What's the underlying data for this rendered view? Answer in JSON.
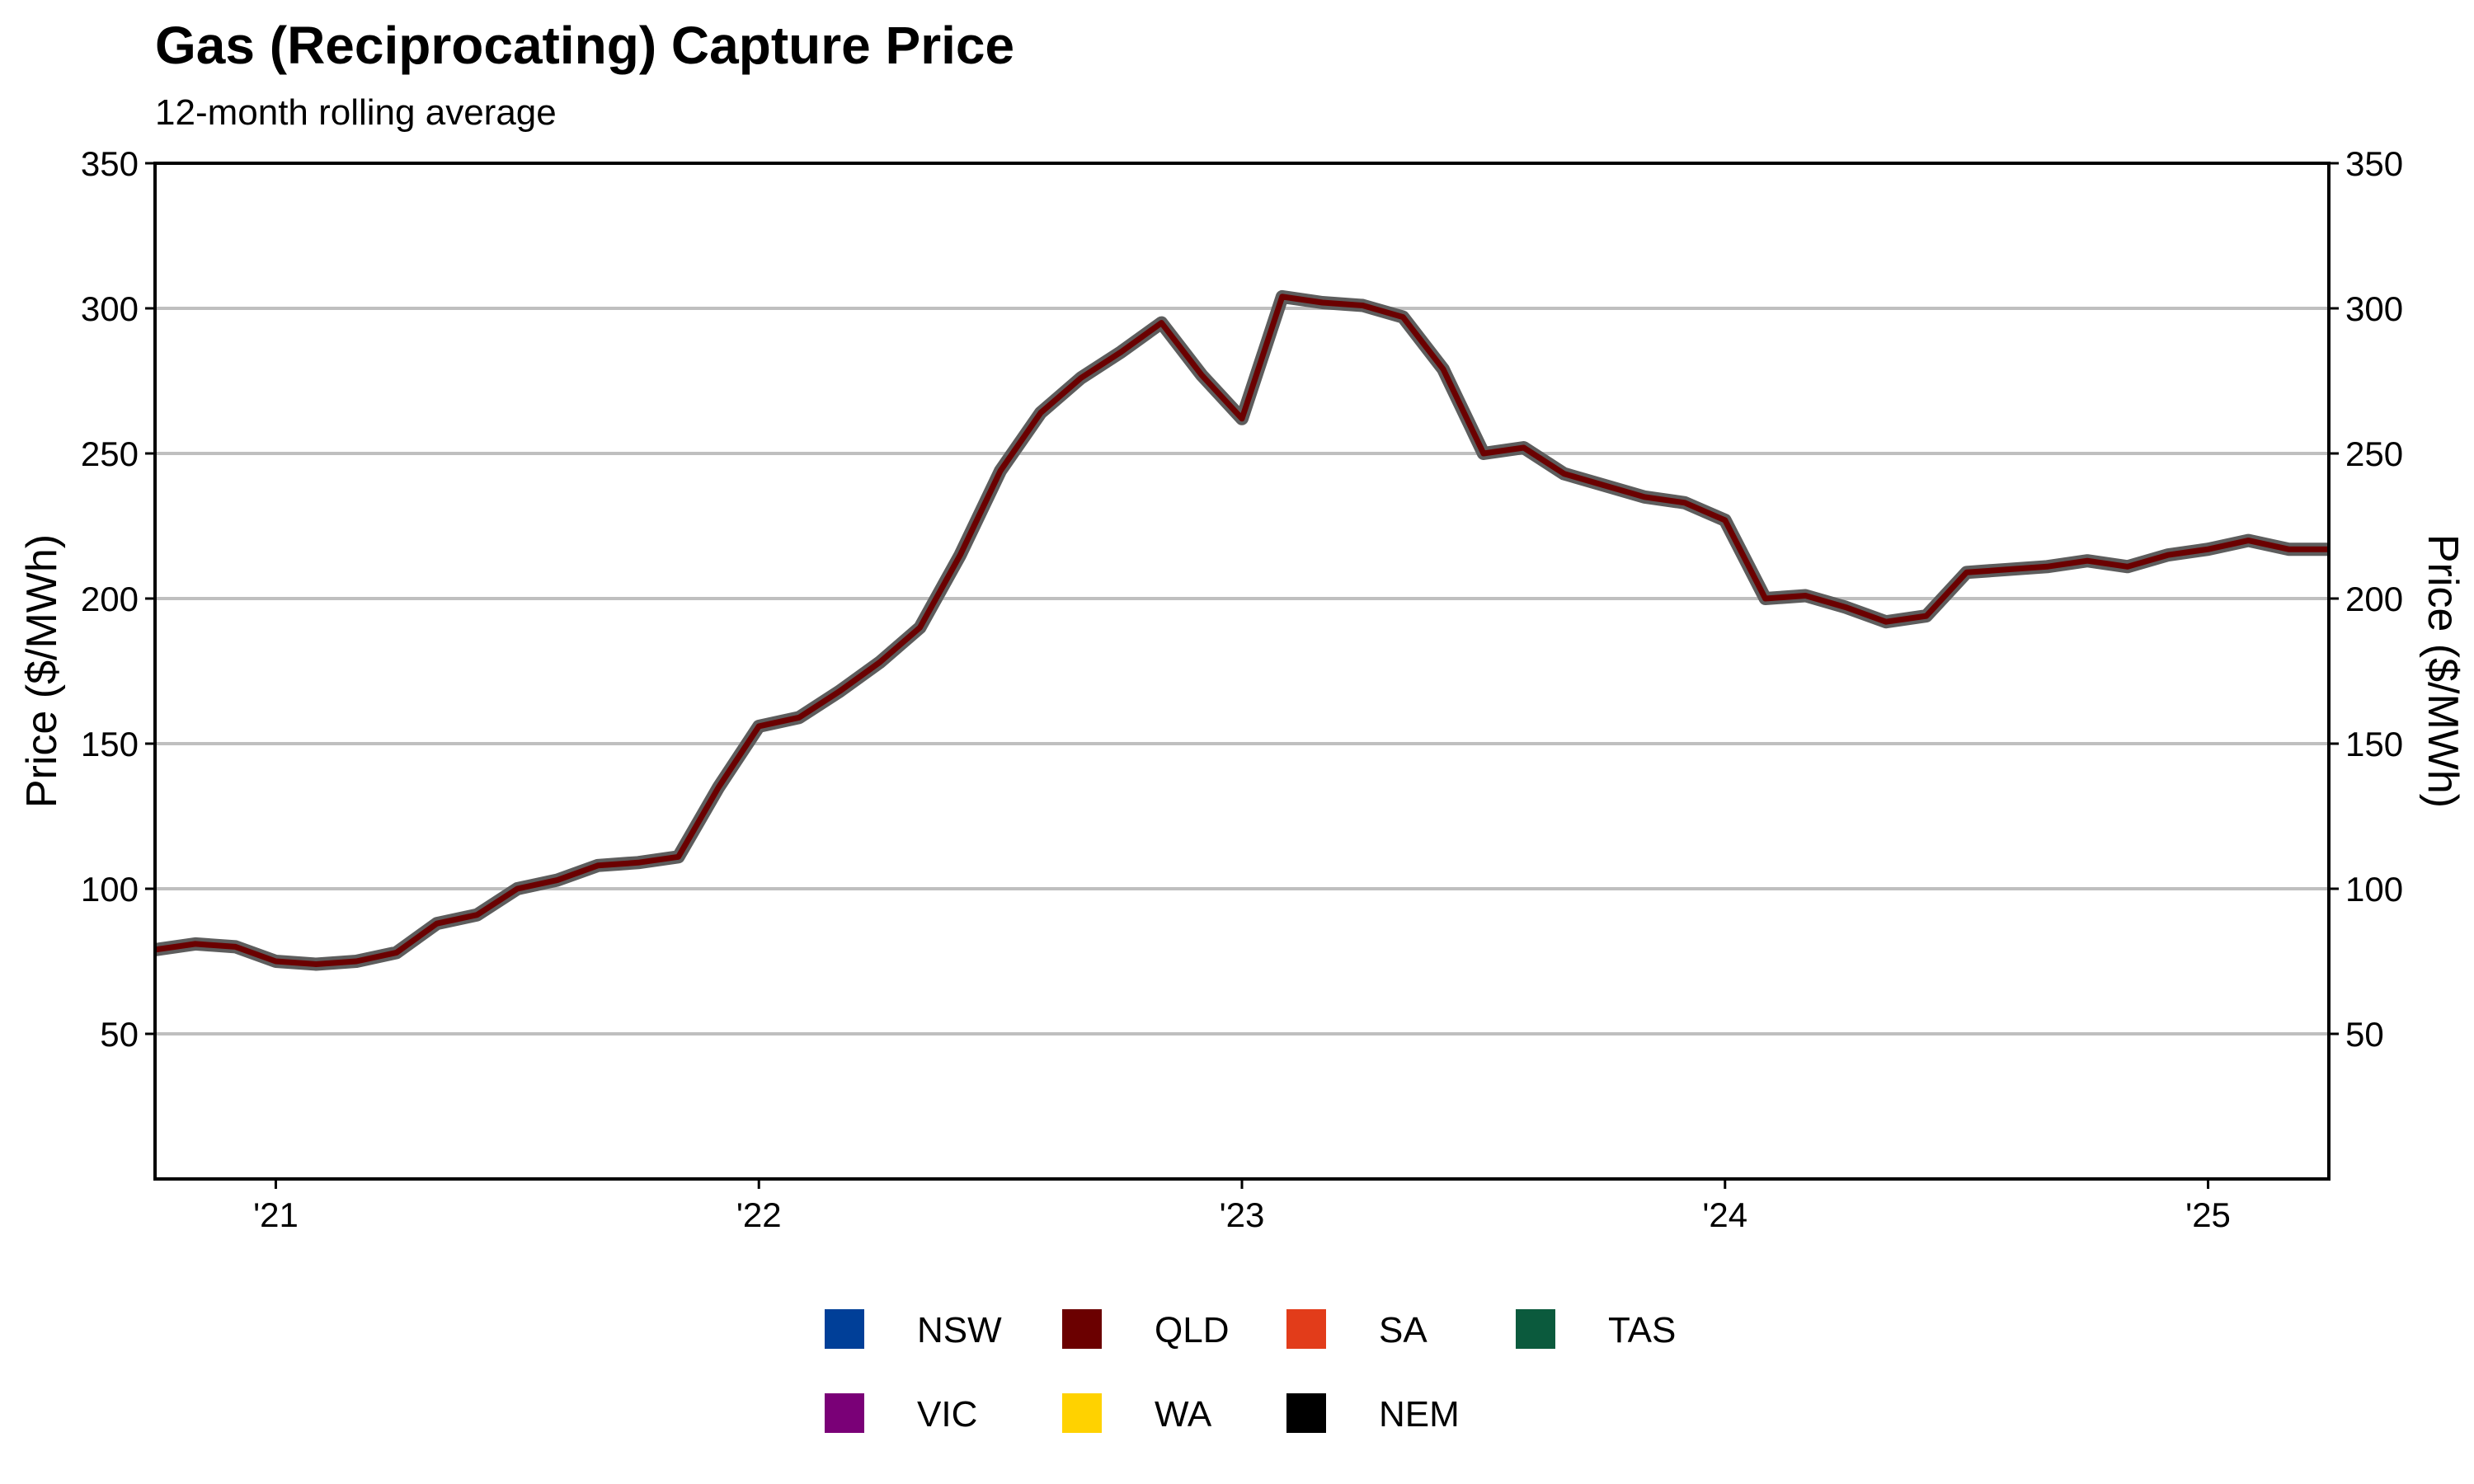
{
  "chart_data": {
    "type": "line",
    "title": "Gas (Reciprocating) Capture Price",
    "subtitle": "12-month rolling average",
    "ylabel": "Price ($/MWh)",
    "ylabel_right": "Price ($/MWh)",
    "ylim": [
      0,
      350
    ],
    "yticks": [
      50,
      100,
      150,
      200,
      250,
      300,
      350
    ],
    "xlim": [
      "2020-10",
      "2025-04"
    ],
    "xticks": [
      {
        "date": "2021-01",
        "label": "'21"
      },
      {
        "date": "2022-01",
        "label": "'22"
      },
      {
        "date": "2023-01",
        "label": "'23"
      },
      {
        "date": "2024-01",
        "label": "'24"
      },
      {
        "date": "2025-01",
        "label": "'25"
      }
    ],
    "grid": "horizontal",
    "legend_position": "bottom",
    "legend": [
      {
        "name": "NSW",
        "color": "#003f98"
      },
      {
        "name": "QLD",
        "color": "#6b0000"
      },
      {
        "name": "SA",
        "color": "#e23c1a"
      },
      {
        "name": "TAS",
        "color": "#0b5a3d"
      },
      {
        "name": "VIC",
        "color": "#7a0077"
      },
      {
        "name": "WA",
        "color": "#ffd200"
      },
      {
        "name": "NEM",
        "color": "#000000"
      }
    ],
    "series": [
      {
        "name": "QLD",
        "color": "#6b0000",
        "x": [
          "2020-10",
          "2020-11",
          "2020-12",
          "2021-01",
          "2021-02",
          "2021-03",
          "2021-04",
          "2021-05",
          "2021-06",
          "2021-07",
          "2021-08",
          "2021-09",
          "2021-10",
          "2021-11",
          "2021-12",
          "2022-01",
          "2022-02",
          "2022-03",
          "2022-04",
          "2022-05",
          "2022-06",
          "2022-07",
          "2022-08",
          "2022-09",
          "2022-10",
          "2022-11",
          "2022-12",
          "2023-01",
          "2023-02",
          "2023-03",
          "2023-04",
          "2023-05",
          "2023-06",
          "2023-07",
          "2023-08",
          "2023-09",
          "2023-10",
          "2023-11",
          "2023-12",
          "2024-01",
          "2024-02",
          "2024-03",
          "2024-04",
          "2024-05",
          "2024-06",
          "2024-07",
          "2024-08",
          "2024-09",
          "2024-10",
          "2024-11",
          "2024-12",
          "2025-01",
          "2025-02",
          "2025-03",
          "2025-04"
        ],
        "values": [
          79,
          81,
          80,
          75,
          74,
          75,
          78,
          88,
          91,
          100,
          103,
          108,
          109,
          111,
          135,
          156,
          159,
          168,
          178,
          190,
          215,
          244,
          264,
          276,
          285,
          295,
          277,
          262,
          304,
          302,
          301,
          297,
          279,
          250,
          252,
          243,
          239,
          235,
          233,
          227,
          200,
          201,
          197,
          192,
          194,
          209,
          210,
          211,
          213,
          211,
          215,
          217,
          220,
          217,
          217
        ]
      }
    ]
  }
}
